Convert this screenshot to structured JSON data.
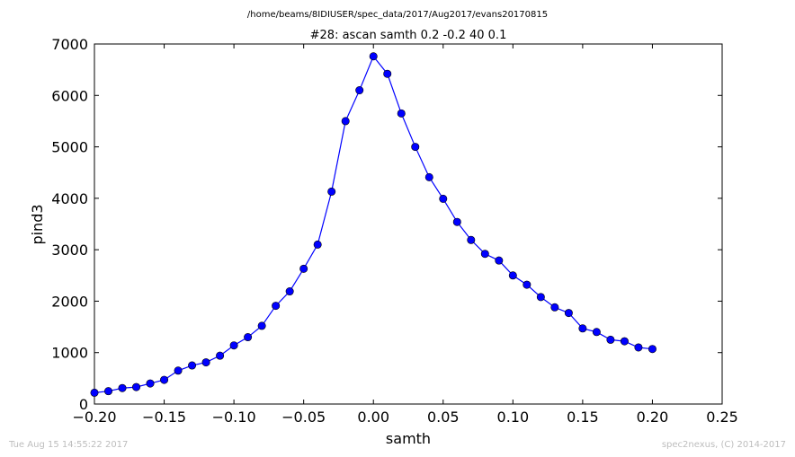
{
  "page": {
    "suptitle": "/home/beams/8IDIUSER/spec_data/2017/Aug2017/evans20170815",
    "footer_left": "Tue Aug 15 14:55:22 2017",
    "footer_right": "spec2nexus, (C) 2014-2017"
  },
  "chart_data": {
    "type": "line",
    "title": "#28: ascan  samth 0.2 -0.2  40 0.1",
    "xlabel": "samth",
    "ylabel": "pind3",
    "xlim": [
      -0.2,
      0.25
    ],
    "ylim": [
      0,
      7000
    ],
    "xticks": [
      -0.2,
      -0.15,
      -0.1,
      -0.05,
      0.0,
      0.05,
      0.1,
      0.15,
      0.2,
      0.25
    ],
    "xtick_labels": [
      "−0.20",
      "−0.15",
      "−0.10",
      "−0.05",
      "0.00",
      "0.05",
      "0.10",
      "0.15",
      "0.20",
      "0.25"
    ],
    "yticks": [
      0,
      1000,
      2000,
      3000,
      4000,
      5000,
      6000,
      7000
    ],
    "ytick_labels": [
      "0",
      "1000",
      "2000",
      "3000",
      "4000",
      "5000",
      "6000",
      "7000"
    ],
    "grid": false,
    "color": "#0000ff",
    "marker": "circle",
    "x": [
      -0.2,
      -0.19,
      -0.18,
      -0.17,
      -0.16,
      -0.15,
      -0.14,
      -0.13,
      -0.12,
      -0.11,
      -0.1,
      -0.09,
      -0.08,
      -0.07,
      -0.06,
      -0.05,
      -0.04,
      -0.03,
      -0.02,
      -0.01,
      0.0,
      0.01,
      0.02,
      0.03,
      0.04,
      0.05,
      0.06,
      0.07,
      0.08,
      0.09,
      0.1,
      0.11,
      0.12,
      0.13,
      0.14,
      0.15,
      0.16,
      0.17,
      0.18,
      0.19,
      0.2
    ],
    "y": [
      220,
      250,
      310,
      330,
      400,
      470,
      650,
      750,
      810,
      940,
      1140,
      1300,
      1520,
      1910,
      2190,
      2630,
      3100,
      4130,
      5500,
      6100,
      6760,
      6420,
      5650,
      5000,
      4410,
      3990,
      3540,
      3190,
      2920,
      2790,
      2500,
      2320,
      2080,
      1880,
      1770,
      1470,
      1400,
      1250,
      1220,
      1100,
      1070
    ]
  }
}
